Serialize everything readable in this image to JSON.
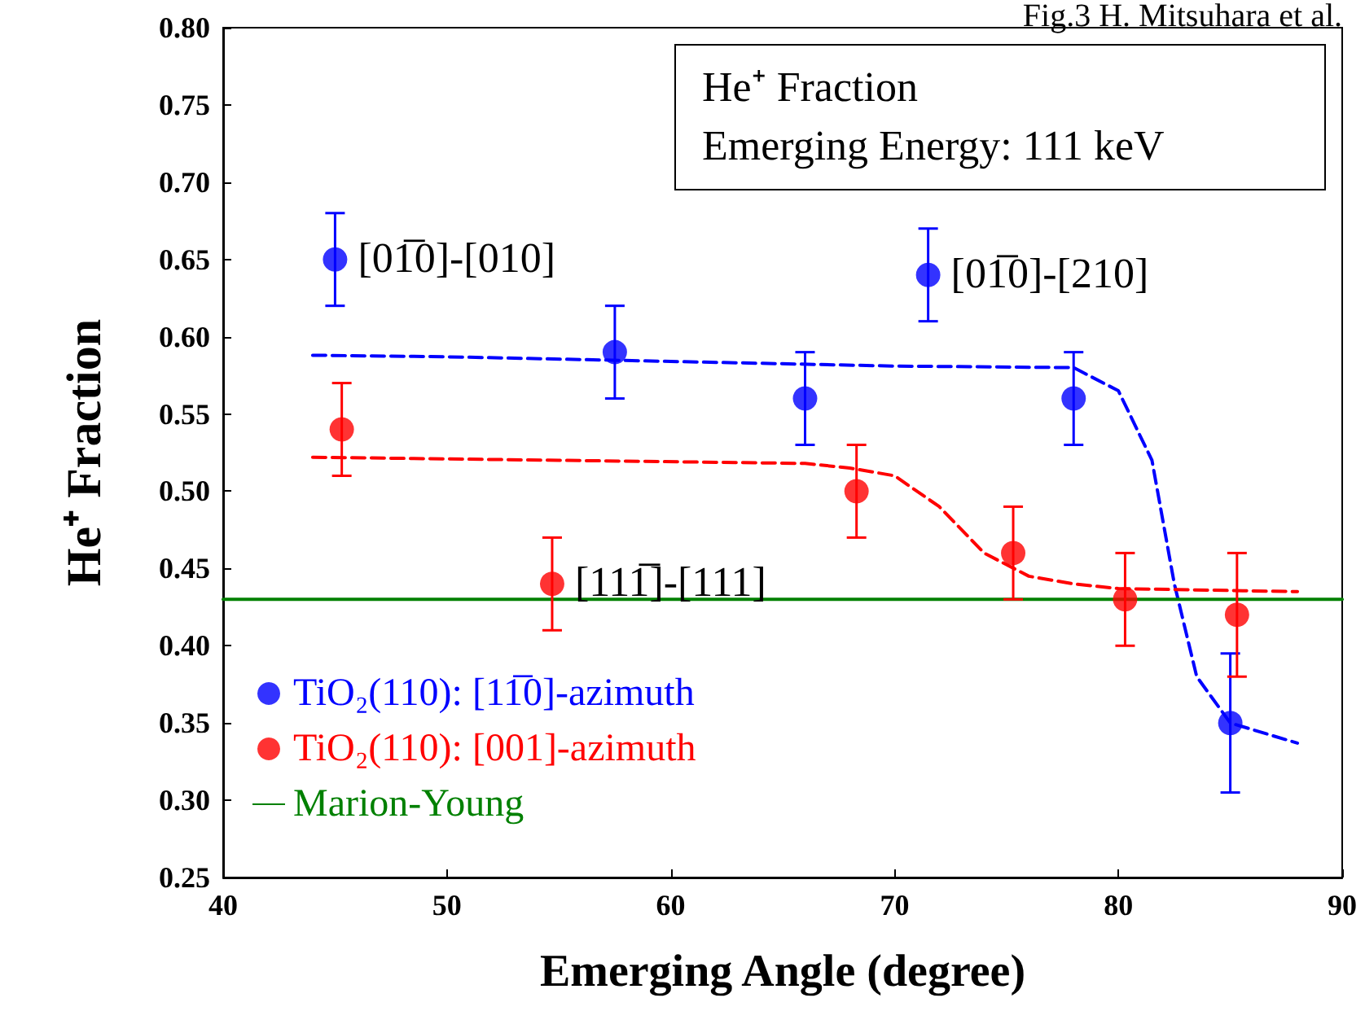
{
  "chart_data": {
    "type": "scatter",
    "xlabel": "Emerging Angle (degree)",
    "ylabel": "He⁺ Fraction",
    "xlim": [
      40,
      90
    ],
    "xticks": [
      40,
      50,
      60,
      70,
      80,
      90
    ],
    "ylim": [
      0.25,
      0.8
    ],
    "yticks": [
      {
        "value": 0.25,
        "label": "0.25"
      },
      {
        "value": 0.3,
        "label": "0.30"
      },
      {
        "value": 0.35,
        "label": "0.35"
      },
      {
        "value": 0.4,
        "label": "0.40"
      },
      {
        "value": 0.45,
        "label": "0.45"
      },
      {
        "value": 0.5,
        "label": "0.50"
      },
      {
        "value": 0.55,
        "label": "0.55"
      },
      {
        "value": 0.6,
        "label": "0.60"
      },
      {
        "value": 0.65,
        "label": "0.65"
      },
      {
        "value": 0.7,
        "label": "0.70"
      },
      {
        "value": 0.75,
        "label": "0.75"
      },
      {
        "value": 0.8,
        "label": "0.80"
      }
    ],
    "grid": false,
    "legend": "bottom left",
    "marker": "circle",
    "series": [
      {
        "name": "TiO₂(110): [11̅0]-azimuth",
        "color": "#0000ff",
        "x": [
          45,
          57.5,
          66,
          71.5,
          78,
          85
        ],
        "values": [
          0.65,
          0.59,
          0.56,
          0.64,
          0.56,
          0.35
        ],
        "errors": [
          0.03,
          0.03,
          0.03,
          0.03,
          0.03,
          0.045
        ]
      },
      {
        "name": "TiO₂(110): [001]-azimuth",
        "color": "#ff0000",
        "x": [
          45.3,
          54.7,
          68.3,
          75.3,
          80.3,
          85.3
        ],
        "values": [
          0.54,
          0.44,
          0.5,
          0.46,
          0.43,
          0.42
        ],
        "errors": [
          0.03,
          0.03,
          0.03,
          0.03,
          0.03,
          0.04
        ]
      },
      {
        "type": "line",
        "color": "#0000ff",
        "line_style": "dashed",
        "marker": "none",
        "x": [
          44,
          50,
          60,
          70,
          78,
          80,
          81.5,
          82.5,
          83.5,
          85,
          88
        ],
        "values": [
          0.588,
          0.587,
          0.584,
          0.581,
          0.58,
          0.565,
          0.52,
          0.44,
          0.38,
          0.35,
          0.337
        ]
      },
      {
        "type": "line",
        "color": "#ff0000",
        "line_style": "dashed",
        "marker": "none",
        "x": [
          44,
          55,
          66,
          68,
          70,
          72,
          74,
          76,
          78,
          80,
          88
        ],
        "values": [
          0.522,
          0.52,
          0.518,
          0.515,
          0.51,
          0.49,
          0.46,
          0.445,
          0.44,
          0.437,
          0.435
        ]
      },
      {
        "type": "line",
        "name": "Marion-Young",
        "color": "#008000",
        "line_style": "solid",
        "marker": "none",
        "x": [
          40,
          90
        ],
        "values": [
          0.43,
          0.43
        ]
      }
    ],
    "annotations": [
      "Fig.3 H. Mitsuhara et al.",
      "He⁺ Fraction",
      "Emerging Energy: 111 keV",
      {
        "text": "[01̅0]-[010]",
        "x": 45,
        "y": 0.65
      },
      {
        "text": "[01̅0]-[210]",
        "x": 71.5,
        "y": 0.64
      },
      {
        "text": "[111̅]-[111]",
        "x": 54.7,
        "y": 0.44
      }
    ]
  }
}
